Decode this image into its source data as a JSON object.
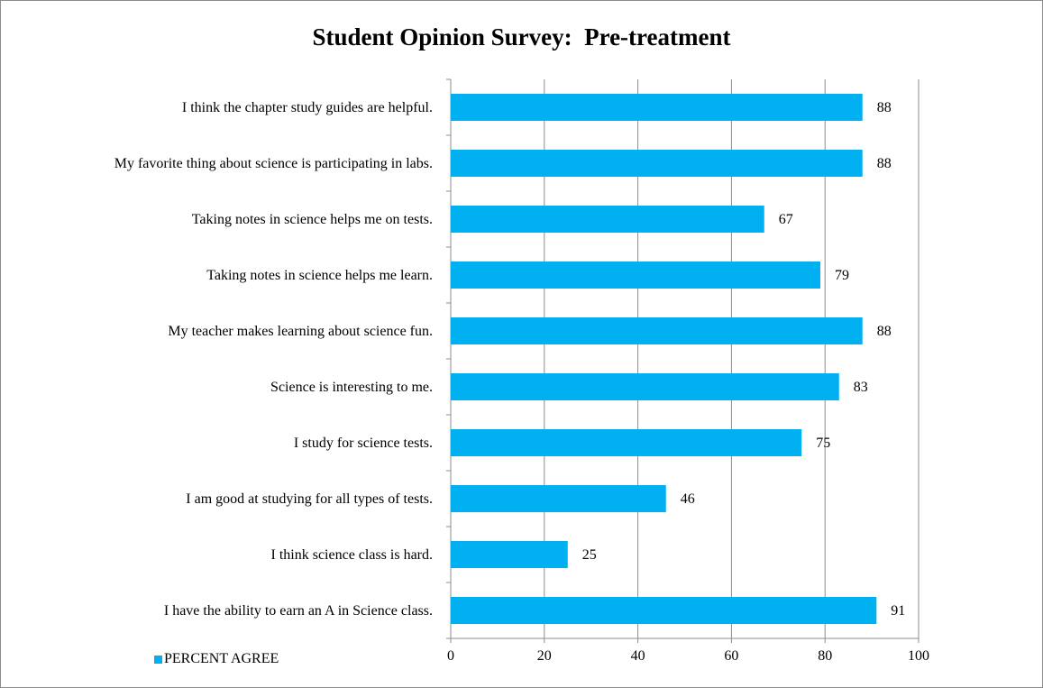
{
  "chart_data": {
    "type": "bar",
    "orientation": "horizontal",
    "title": "Student Opinion Survey:  Pre-treatment",
    "xlabel": "",
    "ylabel": "",
    "categories": [
      "I think the chapter study guides are helpful.",
      "My favorite thing about science is participating in labs.",
      "Taking notes in science helps me on tests.",
      "Taking notes in science helps me learn.",
      "My teacher makes learning about science fun.",
      "Science is interesting to me.",
      "I study for science tests.",
      "I am good at studying for all types of tests.",
      "I think science class is hard.",
      "I have the ability to earn an A in Science class."
    ],
    "series": [
      {
        "name": "PERCENT AGREE",
        "values": [
          88,
          88,
          67,
          79,
          88,
          83,
          75,
          46,
          25,
          91
        ],
        "color": "#00b0f0"
      }
    ],
    "xlim": [
      0,
      100
    ],
    "xticks": [
      0,
      20,
      40,
      60,
      80,
      100
    ],
    "grid": "vertical",
    "data_labels": true,
    "legend": "bottom-left"
  }
}
